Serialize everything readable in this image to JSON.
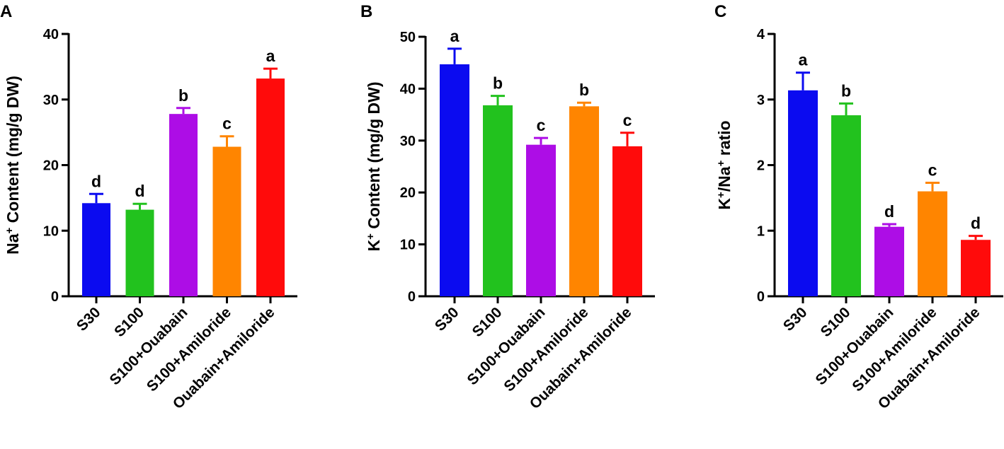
{
  "colors": [
    "#0b0bf0",
    "#22c21e",
    "#ad0de6",
    "#ff8500",
    "#ff0b0b"
  ],
  "chart_data": [
    {
      "type": "bar",
      "panel_label": "A",
      "categories": [
        "S30",
        "S100",
        "S100+Ouabain",
        "S100+Amiloride",
        "Ouabain+Amiloride"
      ],
      "values": [
        14.2,
        13.2,
        27.8,
        22.8,
        33.2
      ],
      "errors": [
        1.4,
        0.9,
        0.9,
        1.6,
        1.5
      ],
      "significance": [
        "d",
        "d",
        "b",
        "c",
        "a"
      ],
      "ylabel_parts": [
        "Na",
        "+",
        " Content (mg/g DW)"
      ],
      "ylim": [
        0,
        40
      ],
      "yticks": [
        0,
        10,
        20,
        30,
        40
      ],
      "title": "",
      "xlabel": ""
    },
    {
      "type": "bar",
      "panel_label": "B",
      "categories": [
        "S30",
        "S100",
        "S100+Ouabain",
        "S100+Amiloride",
        "Ouabain+Amiloride"
      ],
      "values": [
        44.7,
        36.8,
        29.2,
        36.6,
        28.9
      ],
      "errors": [
        3.0,
        1.8,
        1.3,
        0.7,
        2.6
      ],
      "significance": [
        "a",
        "b",
        "c",
        "b",
        "c"
      ],
      "ylabel_parts": [
        "K",
        "+",
        " Content (mg/g DW)"
      ],
      "ylim": [
        0,
        50
      ],
      "yticks": [
        0,
        10,
        20,
        30,
        40,
        50
      ],
      "title": "",
      "xlabel": ""
    },
    {
      "type": "bar",
      "panel_label": "C",
      "categories": [
        "S30",
        "S100",
        "S100+Ouabain",
        "S100+Amiloride",
        "Ouabain+Amiloride"
      ],
      "values": [
        3.14,
        2.76,
        1.06,
        1.6,
        0.86
      ],
      "errors": [
        0.27,
        0.18,
        0.04,
        0.13,
        0.06
      ],
      "significance": [
        "a",
        "b",
        "d",
        "c",
        "d"
      ],
      "ylabel_parts": [
        "K",
        "+",
        "/Na",
        "+",
        " ratio"
      ],
      "ylim": [
        0,
        4
      ],
      "yticks": [
        0,
        1,
        2,
        3,
        4
      ],
      "title": "",
      "xlabel": ""
    }
  ]
}
